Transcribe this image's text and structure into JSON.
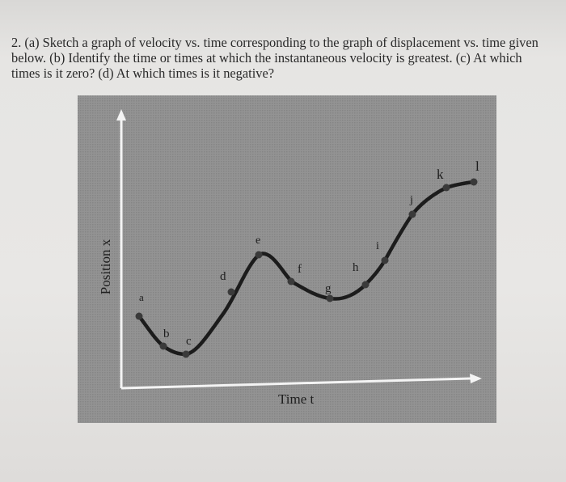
{
  "question": {
    "lines": [
      "2. (a) Sketch a graph of velocity vs. time corresponding to the graph of displacement vs. time given",
      "below. (b) Identify the time or times at which the instantaneous velocity is greatest. (c) At which",
      "times is it zero? (d) At which times is it negative?"
    ]
  },
  "figure": {
    "x_axis_label": "Time t",
    "y_axis_label": "Position x",
    "point_labels": [
      "a",
      "b",
      "c",
      "d",
      "e",
      "f",
      "g",
      "h",
      "i",
      "j",
      "k",
      "l"
    ],
    "colors": {
      "panel": "#8c8c8c",
      "curve": "#1c1c1c",
      "axis": "#f4f4f4"
    }
  }
}
